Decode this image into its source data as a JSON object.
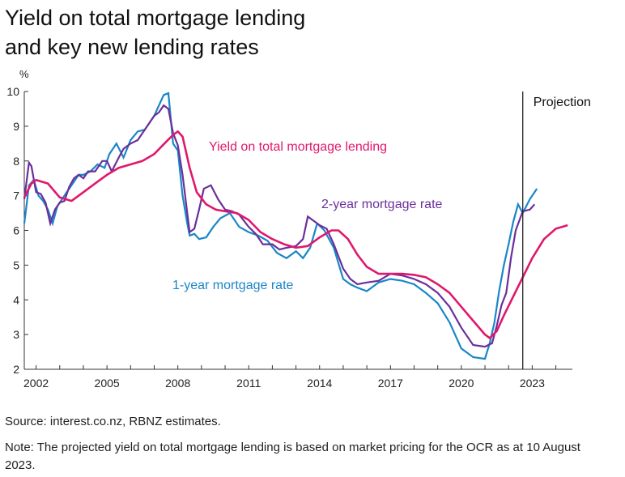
{
  "title_line1": "Yield on total mortgage lending",
  "title_line2": "and key new lending rates",
  "source": "Source: interest.co.nz, RBNZ estimates.",
  "note": "Note: The projected yield on total mortgage lending is based on market pricing for the OCR as at 10 August 2023.",
  "chart_data": {
    "type": "line",
    "title": "Yield on total mortgage lending and key new lending rates",
    "ylabel": "%",
    "ylim": [
      2,
      10
    ],
    "xlim": [
      2001.5,
      2024.7
    ],
    "yticks": [
      2,
      3,
      4,
      5,
      6,
      7,
      8,
      9,
      10
    ],
    "xticks": [
      2002,
      2005,
      2008,
      2011,
      2014,
      2017,
      2020,
      2023
    ],
    "grid": false,
    "projection": {
      "x": 2022.6,
      "label": "Projection"
    },
    "colors": {
      "yield": "#e0186c",
      "two_year": "#6b2f9a",
      "one_year": "#1a86c8"
    },
    "series": [
      {
        "name": "Yield on total mortgage lending",
        "color": "#e0186c",
        "x": [
          2001.5,
          2001.8,
          2002.0,
          2002.5,
          2003.0,
          2003.5,
          2004.0,
          2004.5,
          2005.0,
          2005.5,
          2006.0,
          2006.5,
          2007.0,
          2007.5,
          2007.8,
          2008.0,
          2008.2,
          2008.5,
          2008.8,
          2009.2,
          2009.6,
          2010.0,
          2010.5,
          2011.0,
          2011.5,
          2012.0,
          2012.5,
          2013.0,
          2013.5,
          2014.0,
          2014.5,
          2014.8,
          2015.2,
          2015.6,
          2016.0,
          2016.5,
          2017.0,
          2017.5,
          2018.0,
          2018.5,
          2019.0,
          2019.5,
          2020.0,
          2020.5,
          2021.0,
          2021.2,
          2021.5,
          2021.8,
          2022.2,
          2022.6,
          2023.0,
          2023.5,
          2024.0,
          2024.5
        ],
        "values": [
          6.95,
          7.35,
          7.45,
          7.35,
          6.95,
          6.85,
          7.1,
          7.35,
          7.6,
          7.8,
          7.9,
          8.0,
          8.2,
          8.55,
          8.75,
          8.85,
          8.7,
          7.8,
          7.1,
          6.75,
          6.6,
          6.55,
          6.5,
          6.3,
          5.95,
          5.75,
          5.6,
          5.5,
          5.55,
          5.8,
          6.0,
          6.0,
          5.75,
          5.3,
          4.95,
          4.75,
          4.75,
          4.75,
          4.72,
          4.65,
          4.45,
          4.2,
          3.8,
          3.4,
          3.0,
          2.9,
          3.1,
          3.55,
          4.1,
          4.65,
          5.2,
          5.75,
          6.05,
          6.15
        ]
      },
      {
        "name": "2-year mortgage rate",
        "color": "#6b2f9a",
        "x": [
          2001.5,
          2001.7,
          2001.8,
          2002.0,
          2002.2,
          2002.4,
          2002.6,
          2002.8,
          2003.0,
          2003.2,
          2003.4,
          2003.6,
          2003.8,
          2004.0,
          2004.2,
          2004.5,
          2004.8,
          2005.0,
          2005.2,
          2005.5,
          2005.7,
          2006.0,
          2006.3,
          2006.6,
          2007.0,
          2007.2,
          2007.4,
          2007.6,
          2007.8,
          2008.0,
          2008.2,
          2008.4,
          2008.5,
          2008.7,
          2008.9,
          2009.1,
          2009.4,
          2009.7,
          2010.0,
          2010.3,
          2010.6,
          2011.0,
          2011.3,
          2011.6,
          2012.0,
          2012.3,
          2012.6,
          2013.0,
          2013.3,
          2013.5,
          2013.8,
          2014.0,
          2014.3,
          2014.6,
          2015.0,
          2015.3,
          2015.6,
          2016.0,
          2016.5,
          2017.0,
          2017.5,
          2018.0,
          2018.5,
          2019.0,
          2019.5,
          2020.0,
          2020.5,
          2021.0,
          2021.3,
          2021.5,
          2021.7,
          2021.9,
          2022.1,
          2022.3,
          2022.6,
          2022.9,
          2023.1
        ],
        "values": [
          6.9,
          7.95,
          7.85,
          7.1,
          7.05,
          6.8,
          6.2,
          6.6,
          6.8,
          6.85,
          7.25,
          7.5,
          7.6,
          7.5,
          7.7,
          7.7,
          8.0,
          8.0,
          7.7,
          8.1,
          8.35,
          8.5,
          8.6,
          8.9,
          9.3,
          9.4,
          9.6,
          9.5,
          8.8,
          8.45,
          7.6,
          6.5,
          5.95,
          6.05,
          6.6,
          7.2,
          7.3,
          6.9,
          6.6,
          6.55,
          6.45,
          6.1,
          5.9,
          5.6,
          5.6,
          5.45,
          5.5,
          5.55,
          5.75,
          6.4,
          6.25,
          6.15,
          6.05,
          5.6,
          4.9,
          4.6,
          4.45,
          4.5,
          4.55,
          4.75,
          4.7,
          4.6,
          4.45,
          4.2,
          3.8,
          3.2,
          2.7,
          2.65,
          2.75,
          3.25,
          3.85,
          4.2,
          5.2,
          6.0,
          6.55,
          6.6,
          6.75
        ]
      },
      {
        "name": "1-year mortgage rate",
        "color": "#1a86c8",
        "x": [
          2001.5,
          2001.7,
          2001.9,
          2002.1,
          2002.3,
          2002.5,
          2002.7,
          2002.9,
          2003.1,
          2003.3,
          2003.6,
          2003.8,
          2004.0,
          2004.3,
          2004.6,
          2004.9,
          2005.1,
          2005.4,
          2005.7,
          2006.0,
          2006.3,
          2006.6,
          2007.0,
          2007.2,
          2007.4,
          2007.6,
          2007.8,
          2008.0,
          2008.2,
          2008.4,
          2008.5,
          2008.7,
          2008.9,
          2009.2,
          2009.5,
          2009.8,
          2010.2,
          2010.6,
          2011.0,
          2011.4,
          2011.8,
          2012.2,
          2012.6,
          2013.0,
          2013.3,
          2013.6,
          2013.9,
          2014.2,
          2014.6,
          2015.0,
          2015.3,
          2015.6,
          2016.0,
          2016.5,
          2017.0,
          2017.5,
          2018.0,
          2018.5,
          2019.0,
          2019.5,
          2020.0,
          2020.5,
          2021.0,
          2021.2,
          2021.4,
          2021.6,
          2021.8,
          2022.0,
          2022.2,
          2022.4,
          2022.6,
          2022.9,
          2023.2
        ],
        "values": [
          6.2,
          7.3,
          7.45,
          7.0,
          6.85,
          6.6,
          6.2,
          6.7,
          6.9,
          7.1,
          7.4,
          7.6,
          7.6,
          7.7,
          7.9,
          7.8,
          8.2,
          8.5,
          8.1,
          8.6,
          8.85,
          8.9,
          9.3,
          9.6,
          9.9,
          9.95,
          8.5,
          8.3,
          7.0,
          6.2,
          5.85,
          5.9,
          5.75,
          5.8,
          6.1,
          6.35,
          6.5,
          6.1,
          5.95,
          5.85,
          5.7,
          5.35,
          5.2,
          5.4,
          5.2,
          5.5,
          6.2,
          6.0,
          5.5,
          4.6,
          4.45,
          4.35,
          4.25,
          4.5,
          4.6,
          4.55,
          4.45,
          4.2,
          3.9,
          3.35,
          2.6,
          2.35,
          2.3,
          2.75,
          3.35,
          4.25,
          5.0,
          5.6,
          6.25,
          6.75,
          6.5,
          6.9,
          7.2
        ]
      }
    ],
    "annotations": [
      {
        "text": "Yield on total mortgage lending",
        "series": "yield"
      },
      {
        "text": "2-year mortgage rate",
        "series": "two_year"
      },
      {
        "text": "1-year mortgage rate",
        "series": "one_year"
      }
    ]
  }
}
